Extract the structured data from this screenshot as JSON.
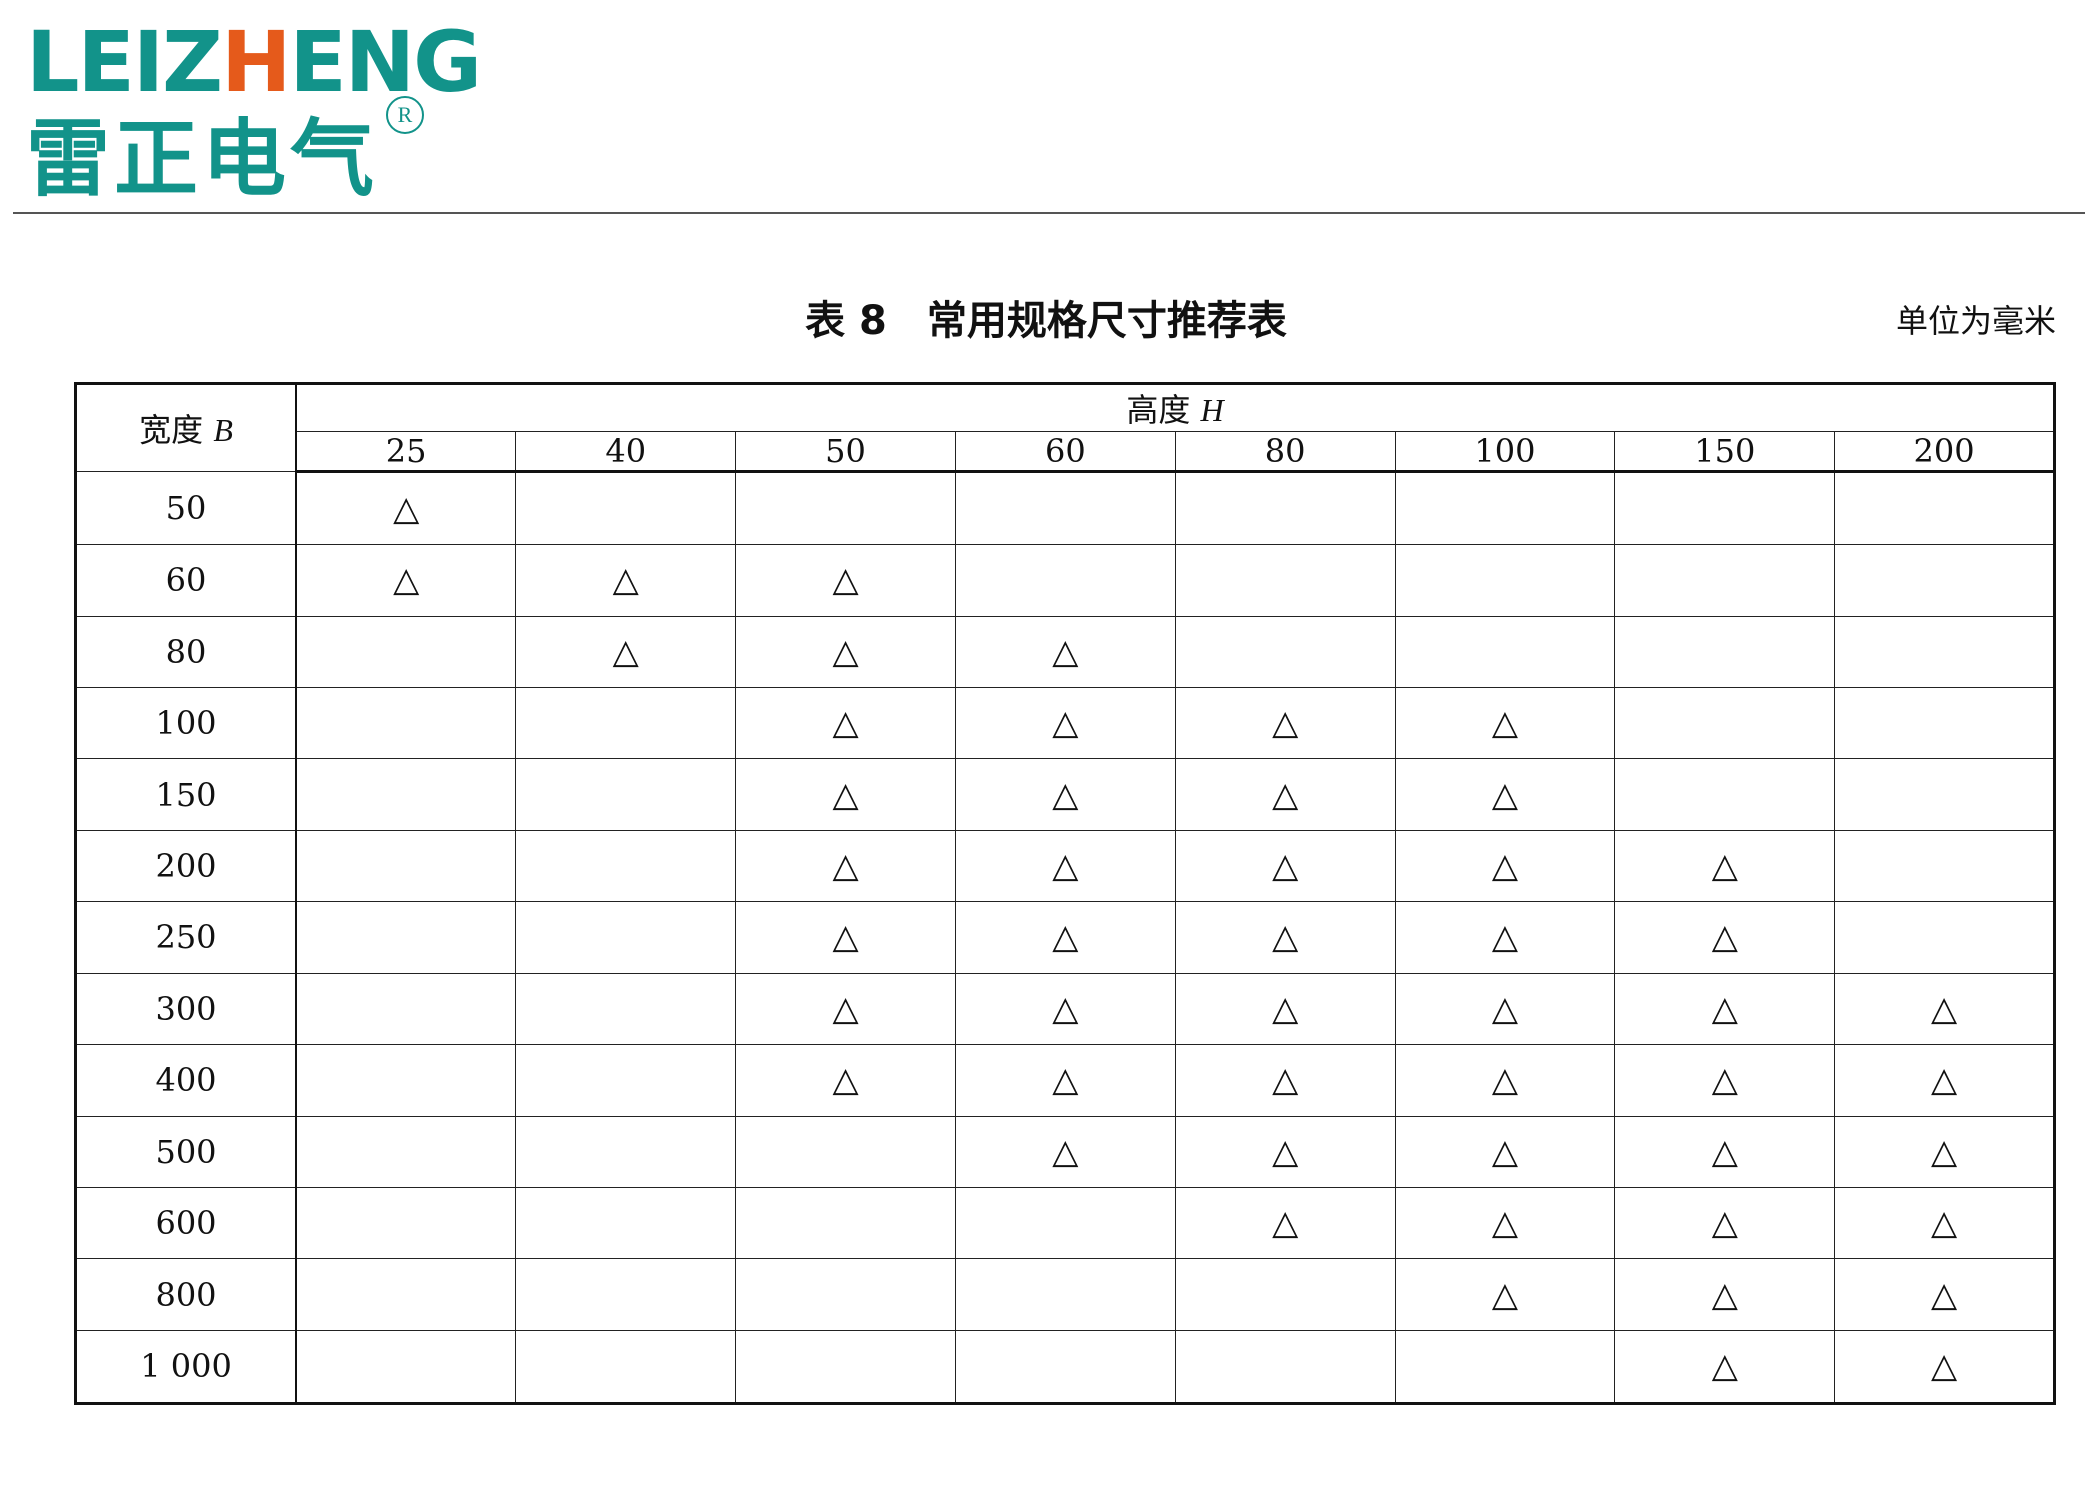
{
  "logo": {
    "text_en_pre": "LEIZ",
    "text_en_h": "H",
    "text_en_post": "ENG",
    "text_cn": "雷正电气",
    "registered": "R",
    "colors": {
      "brand": "#12938a",
      "accent": "#e55a1b"
    }
  },
  "title": "表 8　常用规格尺寸推荐表",
  "unit": "单位为毫米",
  "table": {
    "row_header": "宽度",
    "row_header_var": "B",
    "col_group_header": "高度",
    "col_group_var": "H",
    "columns": [
      "25",
      "40",
      "50",
      "60",
      "80",
      "100",
      "150",
      "200"
    ],
    "mark_symbol": "△",
    "rows": [
      {
        "width": "50",
        "marks": [
          "25"
        ]
      },
      {
        "width": "60",
        "marks": [
          "25",
          "40",
          "50"
        ]
      },
      {
        "width": "80",
        "marks": [
          "40",
          "50",
          "60"
        ]
      },
      {
        "width": "100",
        "marks": [
          "50",
          "60",
          "80",
          "100"
        ]
      },
      {
        "width": "150",
        "marks": [
          "50",
          "60",
          "80",
          "100"
        ]
      },
      {
        "width": "200",
        "marks": [
          "50",
          "60",
          "80",
          "100",
          "150"
        ]
      },
      {
        "width": "250",
        "marks": [
          "50",
          "60",
          "80",
          "100",
          "150"
        ]
      },
      {
        "width": "300",
        "marks": [
          "50",
          "60",
          "80",
          "100",
          "150",
          "200"
        ]
      },
      {
        "width": "400",
        "marks": [
          "50",
          "60",
          "80",
          "100",
          "150",
          "200"
        ]
      },
      {
        "width": "500",
        "marks": [
          "60",
          "80",
          "100",
          "150",
          "200"
        ]
      },
      {
        "width": "600",
        "marks": [
          "80",
          "100",
          "150",
          "200"
        ]
      },
      {
        "width": "800",
        "marks": [
          "100",
          "150",
          "200"
        ]
      },
      {
        "width": "1 000",
        "marks": [
          "150",
          "200"
        ]
      }
    ]
  }
}
